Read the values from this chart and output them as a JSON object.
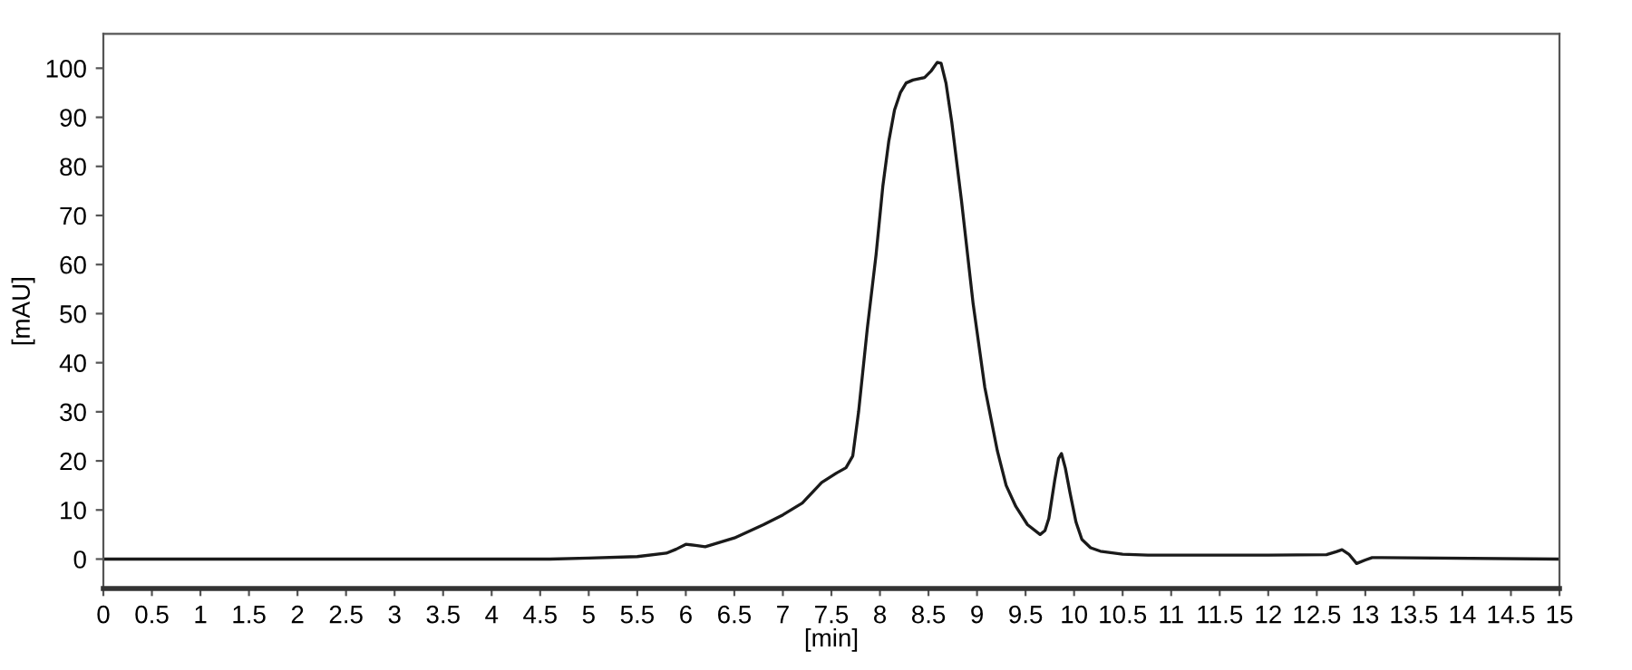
{
  "chart_data": {
    "type": "line",
    "xlabel": "[min]",
    "ylabel": "[mAU]",
    "xlim": [
      0,
      15
    ],
    "ylim": [
      -6,
      107
    ],
    "xticks": [
      0,
      0.5,
      1,
      1.5,
      2,
      2.5,
      3,
      3.5,
      4,
      4.5,
      5,
      5.5,
      6,
      6.5,
      7,
      7.5,
      8,
      8.5,
      9,
      9.5,
      10,
      10.5,
      11,
      11.5,
      12,
      12.5,
      13,
      13.5,
      14,
      14.5,
      15
    ],
    "yticks": [
      0,
      10,
      20,
      30,
      40,
      50,
      60,
      70,
      80,
      90,
      100
    ],
    "grid": false,
    "marker": "none",
    "line_style": "solid",
    "series": [
      {
        "color": "#1a1a1a",
        "x": [
          0,
          4.6,
          5.0,
          5.5,
          5.8,
          5.9,
          6.0,
          6.1,
          6.2,
          6.5,
          6.8,
          7.0,
          7.2,
          7.4,
          7.55,
          7.65,
          7.72,
          7.78,
          7.87,
          7.96,
          8.03,
          8.09,
          8.15,
          8.21,
          8.27,
          8.34,
          8.46,
          8.53,
          8.59,
          8.63,
          8.68,
          8.74,
          8.84,
          8.96,
          9.08,
          9.21,
          9.3,
          9.4,
          9.52,
          9.65,
          9.7,
          9.74,
          9.8,
          9.84,
          9.87,
          9.91,
          9.96,
          10.02,
          10.08,
          10.17,
          10.27,
          10.5,
          10.76,
          12.0,
          12.6,
          12.7,
          12.76,
          12.83,
          12.91,
          13.0,
          13.07,
          15
        ],
        "values": [
          0,
          0,
          0.2,
          0.5,
          1.2,
          2.0,
          3.0,
          2.8,
          2.5,
          4.3,
          7.0,
          9.0,
          11.4,
          15.6,
          17.5,
          18.6,
          21,
          30,
          47,
          62,
          76,
          85,
          91.5,
          95,
          97,
          97.6,
          98.1,
          99.5,
          101.2,
          101,
          97,
          89,
          73,
          52,
          35,
          22,
          15,
          10.7,
          7,
          5.0,
          5.8,
          8.3,
          16,
          20.5,
          21.5,
          18.5,
          13.3,
          7.5,
          4.0,
          2.3,
          1.6,
          1.0,
          0.8,
          0.8,
          0.9,
          1.5,
          1.9,
          1.0,
          -0.9,
          -0.2,
          0.3,
          0
        ]
      }
    ]
  }
}
